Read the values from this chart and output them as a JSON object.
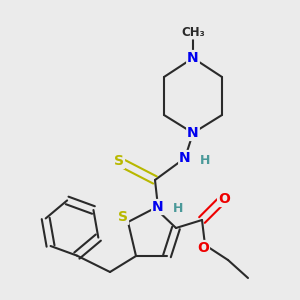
{
  "bg_color": "#ebebeb",
  "bond_color": "#2a2a2a",
  "bond_width": 1.5,
  "dbo": 0.014,
  "atom_colors": {
    "S": "#b8b800",
    "N": "#0000ee",
    "O": "#ee0000",
    "H": "#4a9999",
    "C": "#2a2a2a"
  },
  "fs": 9.5
}
